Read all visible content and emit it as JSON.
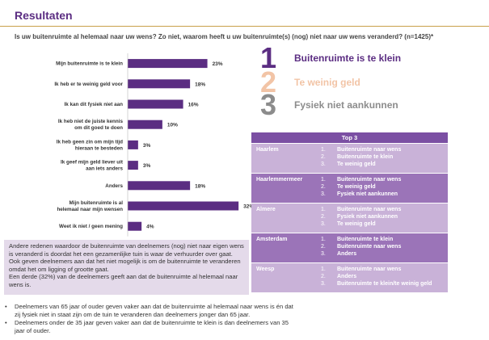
{
  "page": {
    "title": "Resultaten",
    "question": "Is uw buitenruimte al helemaal naar uw wens? Zo niet, waarom heeft u uw buitenruimte(s) (nog) niet naar uw wens veranderd? (n=1425)*"
  },
  "chart_data": {
    "type": "bar",
    "orientation": "horizontal",
    "categories": [
      "Mijn buitenruimte is te klein",
      "Ik heb er te weinig geld voor",
      "Ik kan dit fysiek niet aan",
      "Ik heb niet de juiste kennis om dit goed te doen",
      "Ik heb geen zin om mijn tijd hieraan te besteden",
      "Ik geef mijn geld liever uit aan iets anders",
      "Anders",
      "Mijn buitenruimte is al helemaal naar mijn wensen",
      "Weet ik niet / geen mening"
    ],
    "values": [
      23,
      18,
      16,
      10,
      3,
      3,
      18,
      32,
      4
    ],
    "value_labels": [
      "23%",
      "18%",
      "16%",
      "10%",
      "3%",
      "3%",
      "18%",
      "32%",
      "4%"
    ],
    "bar_color": "#5b2d82",
    "xlim": [
      0,
      35
    ],
    "grid": false
  },
  "ranking": [
    {
      "num": "1",
      "label": "Buitenruimte is te klein",
      "color": "#5b2d82"
    },
    {
      "num": "2",
      "label": "Te weinig geld",
      "color": "#f2c4a6"
    },
    {
      "num": "3",
      "label": "Fysiek niet aankunnen",
      "color": "#8c8c8c"
    }
  ],
  "top3": {
    "header": "Top 3",
    "colors": {
      "header": "#7b4fa3",
      "dark": "#9b74b8",
      "light": "#c9b2d8"
    },
    "rows": [
      {
        "city": "Haarlem",
        "items": [
          {
            "n": "1.",
            "t": "Buitenruimte naar wens"
          },
          {
            "n": "2.",
            "t": "Buitenruimte te klein"
          },
          {
            "n": "3.",
            "t": "Te weinig geld"
          }
        ]
      },
      {
        "city": "Haarlemmermeer",
        "items": [
          {
            "n": "1.",
            "t": "Buitenruimte naar wens"
          },
          {
            "n": "2.",
            "t": "Te weinig geld"
          },
          {
            "n": "3.",
            "t": "Fysiek niet aankunnen"
          }
        ]
      },
      {
        "city": "Almere",
        "items": [
          {
            "n": "1.",
            "t": "Buitenruimte naar wens"
          },
          {
            "n": "2.",
            "t": "Fysiek niet aankunnen"
          },
          {
            "n": "3.",
            "t": "Te weinig geld"
          }
        ]
      },
      {
        "city": "Amsterdam",
        "items": [
          {
            "n": "1.",
            "t": "Buitenruimte te klein"
          },
          {
            "n": "2.",
            "t": "Buitenruimte naar wens"
          },
          {
            "n": "3.",
            "t": "Anders"
          }
        ]
      },
      {
        "city": "Weesp",
        "items": [
          {
            "n": "1.",
            "t": "Buitenruimte naar wens"
          },
          {
            "n": "2.",
            "t": "Anders"
          },
          {
            "n": "3.",
            "t": "Buitenruimte te klein/te weinig geld"
          }
        ]
      }
    ]
  },
  "other_reasons": {
    "p1": "Andere redenen waardoor de buitenruimte van deelnemers (nog) niet naar eigen wens is veranderd is doordat het een gezamenlijke tuin is waar de verhuurder over gaat. Ook geven deelnemers aan dat het niet mogelijk is om de buitenruimte te veranderen omdat het om ligging of grootte gaat.",
    "p2": "Een derde (32%) van de deelnemers geeft aan dat de buitenruimte al helemaal naar wens is."
  },
  "footnotes": [
    "Deelnemers van 65 jaar of ouder geven vaker aan dat de buitenruimte al helemaal naar wens is én dat zij fysiek niet in staat zijn om de tuin te veranderen dan deelnemers jonger dan 65 jaar.",
    "Deelnemers onder de 35 jaar geven vaker aan dat de buitenruimte te klein is dan deelnemers van 35 jaar of ouder."
  ]
}
